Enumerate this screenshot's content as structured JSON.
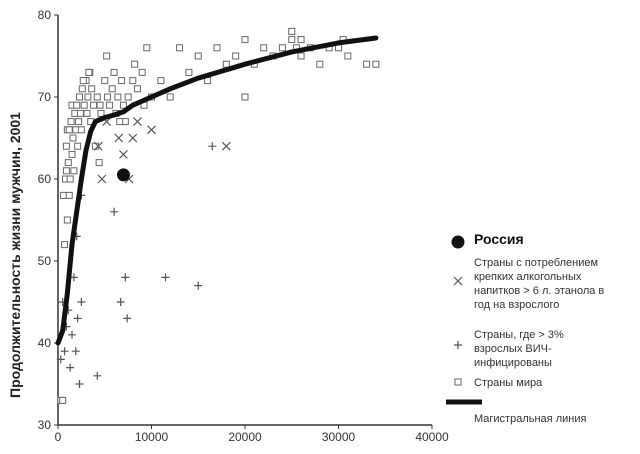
{
  "chart_data": {
    "type": "scatter",
    "ylabel": "Продолжительность жизни мужчин, 2001",
    "xlim": [
      0,
      40000
    ],
    "ylim": [
      30,
      80
    ],
    "x_ticks": [
      0,
      10000,
      20000,
      30000,
      40000
    ],
    "y_ticks": [
      30,
      40,
      50,
      60,
      70,
      80
    ],
    "grid": false,
    "legend_position": "right",
    "legend": [
      {
        "key": "russia",
        "marker": "filled-circle",
        "lines": [
          "Россия"
        ]
      },
      {
        "key": "strong_alcohol",
        "marker": "x",
        "lines": [
          "Страны с потреблением",
          "крепких алкогольных",
          "напитков > 6 л. этанола в",
          "год на взрослого"
        ]
      },
      {
        "key": "hiv",
        "marker": "plus",
        "lines": [
          "Страны, где > 3%",
          "взрослых ВИЧ-",
          "инфицированы"
        ]
      },
      {
        "key": "world",
        "marker": "open-square",
        "lines": [
          "Страны мира"
        ]
      },
      {
        "key": "trend",
        "marker": "thick-line",
        "lines": [
          "Магистральная линия"
        ]
      }
    ],
    "series": [
      {
        "key": "world",
        "points": [
          [
            300,
            33
          ],
          [
            500,
            33
          ],
          [
            600,
            58
          ],
          [
            700,
            52
          ],
          [
            800,
            60
          ],
          [
            900,
            61
          ],
          [
            900,
            64
          ],
          [
            1000,
            55
          ],
          [
            1000,
            66
          ],
          [
            1100,
            62
          ],
          [
            1200,
            58
          ],
          [
            1200,
            66
          ],
          [
            1300,
            60
          ],
          [
            1400,
            67
          ],
          [
            1500,
            63
          ],
          [
            1500,
            69
          ],
          [
            1600,
            65
          ],
          [
            1700,
            61
          ],
          [
            1800,
            68
          ],
          [
            1900,
            66
          ],
          [
            2000,
            69
          ],
          [
            2100,
            64
          ],
          [
            2200,
            67
          ],
          [
            2300,
            70
          ],
          [
            2400,
            68
          ],
          [
            2500,
            66
          ],
          [
            2600,
            71
          ],
          [
            2800,
            69
          ],
          [
            3000,
            72
          ],
          [
            3100,
            68
          ],
          [
            3200,
            70
          ],
          [
            3400,
            73
          ],
          [
            3500,
            67
          ],
          [
            3600,
            71
          ],
          [
            3800,
            69
          ],
          [
            4000,
            64
          ],
          [
            4200,
            70
          ],
          [
            4400,
            62
          ],
          [
            4600,
            68
          ],
          [
            5000,
            72
          ],
          [
            5200,
            75
          ],
          [
            5500,
            69
          ],
          [
            5800,
            71
          ],
          [
            6000,
            73
          ],
          [
            6200,
            68
          ],
          [
            6400,
            70
          ],
          [
            6800,
            72
          ],
          [
            7000,
            69
          ],
          [
            7200,
            67
          ],
          [
            7500,
            70
          ],
          [
            8000,
            72
          ],
          [
            8500,
            71
          ],
          [
            9000,
            73
          ],
          [
            9500,
            76
          ],
          [
            10000,
            70
          ],
          [
            11000,
            72
          ],
          [
            12000,
            70
          ],
          [
            13000,
            76
          ],
          [
            14000,
            73
          ],
          [
            15000,
            75
          ],
          [
            16000,
            72
          ],
          [
            17000,
            76
          ],
          [
            18000,
            74
          ],
          [
            19000,
            75
          ],
          [
            20000,
            77
          ],
          [
            20000,
            70
          ],
          [
            21000,
            74
          ],
          [
            22000,
            76
          ],
          [
            23000,
            75
          ],
          [
            24000,
            76
          ],
          [
            25000,
            77
          ],
          [
            25500,
            76
          ],
          [
            26000,
            75
          ],
          [
            27000,
            76
          ],
          [
            28000,
            74
          ],
          [
            29000,
            76
          ],
          [
            30000,
            76
          ],
          [
            30500,
            77
          ],
          [
            31000,
            75
          ],
          [
            33000,
            74
          ],
          [
            34000,
            74
          ],
          [
            25000,
            78
          ],
          [
            26000,
            77
          ],
          [
            4500,
            69
          ],
          [
            3300,
            73
          ],
          [
            2700,
            72
          ],
          [
            5300,
            70
          ],
          [
            6600,
            67
          ],
          [
            8200,
            74
          ],
          [
            9200,
            69
          ]
        ]
      },
      {
        "key": "strong_alcohol",
        "points": [
          [
            4300,
            64
          ],
          [
            4700,
            60
          ],
          [
            5200,
            67
          ],
          [
            6500,
            65
          ],
          [
            7000,
            63
          ],
          [
            7600,
            60
          ],
          [
            8000,
            65
          ],
          [
            8500,
            67
          ],
          [
            10000,
            66
          ],
          [
            18000,
            64
          ]
        ]
      },
      {
        "key": "hiv",
        "points": [
          [
            300,
            38
          ],
          [
            500,
            45
          ],
          [
            700,
            39
          ],
          [
            900,
            42
          ],
          [
            1100,
            44
          ],
          [
            1300,
            37
          ],
          [
            1500,
            41
          ],
          [
            1700,
            48
          ],
          [
            1900,
            39
          ],
          [
            2100,
            43
          ],
          [
            2300,
            35
          ],
          [
            2500,
            45
          ],
          [
            2000,
            53
          ],
          [
            2500,
            58
          ],
          [
            4200,
            36
          ],
          [
            6000,
            56
          ],
          [
            6700,
            45
          ],
          [
            7400,
            43
          ],
          [
            7200,
            48
          ],
          [
            11500,
            48
          ],
          [
            15000,
            47
          ],
          [
            16500,
            64
          ]
        ]
      },
      {
        "key": "russia",
        "points": [
          [
            7000,
            60.5
          ]
        ]
      }
    ],
    "trend_line": [
      [
        0,
        40
      ],
      [
        500,
        41.5
      ],
      [
        1000,
        46
      ],
      [
        1500,
        52
      ],
      [
        2000,
        56
      ],
      [
        2500,
        60
      ],
      [
        3000,
        63.5
      ],
      [
        3500,
        65.8
      ],
      [
        4000,
        67
      ],
      [
        5000,
        67.5
      ],
      [
        6000,
        67.8
      ],
      [
        7000,
        68.2
      ],
      [
        8000,
        69
      ],
      [
        10000,
        70
      ],
      [
        12000,
        71
      ],
      [
        15000,
        72.3
      ],
      [
        20000,
        74
      ],
      [
        25000,
        75.5
      ],
      [
        30000,
        76.6
      ],
      [
        34000,
        77.2
      ]
    ]
  }
}
